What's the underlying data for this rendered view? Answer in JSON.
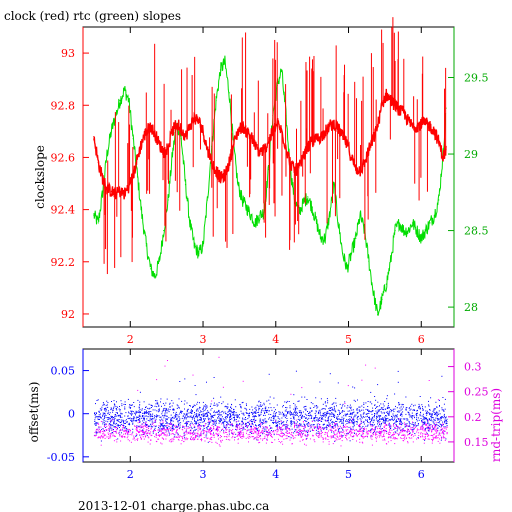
{
  "title": "clock (red) rtc (green) slopes",
  "footer": "2013-12-01 charge.phas.ubc.ca",
  "colors": {
    "clock": "#ff0000",
    "rtc": "#00dd00",
    "offset": "#0000ff",
    "rndtrip": "#ff00ff",
    "axes": "#000000",
    "left_axis_top": "#ff0000",
    "right_axis_top": "#00aa00",
    "left_axis_bottom": "#0000ff",
    "right_axis_bottom": "#dd00dd"
  },
  "chart_data": [
    {
      "type": "line",
      "title": "clock (red) rtc (green) slopes",
      "xlabel": "",
      "ylabel": "clockslope",
      "y2label": "",
      "xlim": [
        1.35,
        6.45
      ],
      "ylim": [
        91.95,
        93.1
      ],
      "y2lim": [
        27.87,
        29.83
      ],
      "x_ticks": [
        2,
        3,
        4,
        5,
        6
      ],
      "y_ticks": [
        92,
        92.2,
        92.4,
        92.6,
        92.8,
        93
      ],
      "y2_ticks": [
        28,
        28.5,
        29,
        29.5
      ],
      "series": [
        {
          "name": "clock",
          "axis": "left",
          "x": [
            1.5,
            1.56,
            1.62,
            1.68,
            1.74,
            1.8,
            1.86,
            1.92,
            1.98,
            2.04,
            2.1,
            2.16,
            2.22,
            2.28,
            2.34,
            2.4,
            2.46,
            2.52,
            2.58,
            2.64,
            2.7,
            2.76,
            2.82,
            2.88,
            2.94,
            3.0,
            3.06,
            3.12,
            3.18,
            3.24,
            3.3,
            3.36,
            3.42,
            3.48,
            3.54,
            3.6,
            3.66,
            3.72,
            3.78,
            3.84,
            3.9,
            3.96,
            4.02,
            4.08,
            4.14,
            4.2,
            4.26,
            4.32,
            4.38,
            4.44,
            4.5,
            4.56,
            4.62,
            4.68,
            4.74,
            4.8,
            4.86,
            4.92,
            4.98,
            5.04,
            5.1,
            5.16,
            5.22,
            5.28,
            5.34,
            5.4,
            5.46,
            5.52,
            5.58,
            5.64,
            5.7,
            5.76,
            5.82,
            5.88,
            5.94,
            6.0,
            6.06,
            6.12,
            6.18,
            6.24,
            6.3,
            6.34
          ],
          "y": [
            92.68,
            92.58,
            92.52,
            92.48,
            92.47,
            92.46,
            92.47,
            92.46,
            92.49,
            92.53,
            92.6,
            92.66,
            92.7,
            92.72,
            92.69,
            92.65,
            92.62,
            92.64,
            92.7,
            92.73,
            92.71,
            92.68,
            92.72,
            92.75,
            92.74,
            92.7,
            92.63,
            92.58,
            92.55,
            92.52,
            92.53,
            92.58,
            92.65,
            92.7,
            92.72,
            92.7,
            92.68,
            92.64,
            92.62,
            92.63,
            92.66,
            92.7,
            92.73,
            92.7,
            92.64,
            92.58,
            92.55,
            92.56,
            92.6,
            92.64,
            92.66,
            92.67,
            92.68,
            92.7,
            92.72,
            92.73,
            92.71,
            92.68,
            92.65,
            92.6,
            92.56,
            92.55,
            92.58,
            92.63,
            92.67,
            92.72,
            92.8,
            92.84,
            92.82,
            92.8,
            92.78,
            92.77,
            92.74,
            92.72,
            92.72,
            92.73,
            92.73,
            92.72,
            92.7,
            92.66,
            92.6,
            92.63
          ]
        },
        {
          "name": "rtc",
          "axis": "right",
          "x": [
            1.5,
            1.56,
            1.62,
            1.68,
            1.74,
            1.8,
            1.86,
            1.92,
            1.98,
            2.04,
            2.1,
            2.16,
            2.22,
            2.28,
            2.34,
            2.4,
            2.46,
            2.52,
            2.58,
            2.64,
            2.7,
            2.76,
            2.82,
            2.88,
            2.94,
            3.0,
            3.06,
            3.12,
            3.18,
            3.24,
            3.3,
            3.36,
            3.42,
            3.48,
            3.54,
            3.6,
            3.66,
            3.72,
            3.78,
            3.84,
            3.9,
            3.96,
            4.02,
            4.08,
            4.14,
            4.2,
            4.26,
            4.32,
            4.38,
            4.44,
            4.5,
            4.56,
            4.62,
            4.68,
            4.74,
            4.8,
            4.86,
            4.92,
            4.98,
            5.04,
            5.1,
            5.16,
            5.22,
            5.28,
            5.34,
            5.4,
            5.46,
            5.52,
            5.58,
            5.64,
            5.7,
            5.76,
            5.82,
            5.88,
            5.94,
            6.0,
            6.06,
            6.12,
            6.18,
            6.24,
            6.3,
            6.34
          ],
          "y": [
            28.6,
            28.55,
            28.75,
            29.0,
            29.15,
            29.25,
            29.35,
            29.42,
            29.35,
            29.1,
            28.85,
            28.6,
            28.4,
            28.25,
            28.2,
            28.3,
            28.5,
            28.7,
            29.0,
            29.2,
            29.1,
            28.8,
            28.55,
            28.4,
            28.35,
            28.4,
            28.7,
            29.05,
            29.35,
            29.55,
            29.6,
            29.4,
            29.05,
            28.8,
            28.7,
            28.65,
            28.6,
            28.55,
            28.6,
            28.62,
            28.9,
            29.25,
            29.45,
            29.55,
            29.25,
            28.9,
            28.7,
            28.62,
            28.68,
            28.72,
            28.65,
            28.55,
            28.45,
            28.45,
            28.6,
            28.8,
            28.55,
            28.35,
            28.25,
            28.35,
            28.45,
            28.6,
            28.5,
            28.3,
            28.1,
            27.95,
            28.05,
            28.15,
            28.3,
            28.5,
            28.55,
            28.5,
            28.5,
            28.55,
            28.5,
            28.45,
            28.5,
            28.55,
            28.6,
            28.7,
            29.0,
            29.3
          ]
        }
      ]
    },
    {
      "type": "scatter",
      "xlabel": "",
      "ylabel": "offset(ms)",
      "y2label": "rnd-trip(ms)",
      "xlim": [
        1.35,
        6.45
      ],
      "ylim": [
        -0.056,
        0.075
      ],
      "y2lim": [
        0.11,
        0.335
      ],
      "x_ticks": [
        2,
        3,
        4,
        5,
        6
      ],
      "y_ticks": [
        -0.05,
        0,
        0.05
      ],
      "y2_ticks": [
        0.15,
        0.2,
        0.25,
        0.3
      ],
      "series": [
        {
          "name": "offset",
          "axis": "left",
          "x_range": [
            1.5,
            6.35
          ],
          "center": 0,
          "spread": [
            -0.034,
            0.025
          ],
          "outliers_y": [
            0.04,
            0.05,
            0.06
          ]
        },
        {
          "name": "rnd-trip",
          "axis": "right",
          "x_range": [
            1.5,
            6.35
          ],
          "center": 0.165,
          "spread": [
            0.14,
            0.2
          ],
          "outliers_y": [
            0.26,
            0.3,
            0.32
          ]
        }
      ]
    }
  ]
}
